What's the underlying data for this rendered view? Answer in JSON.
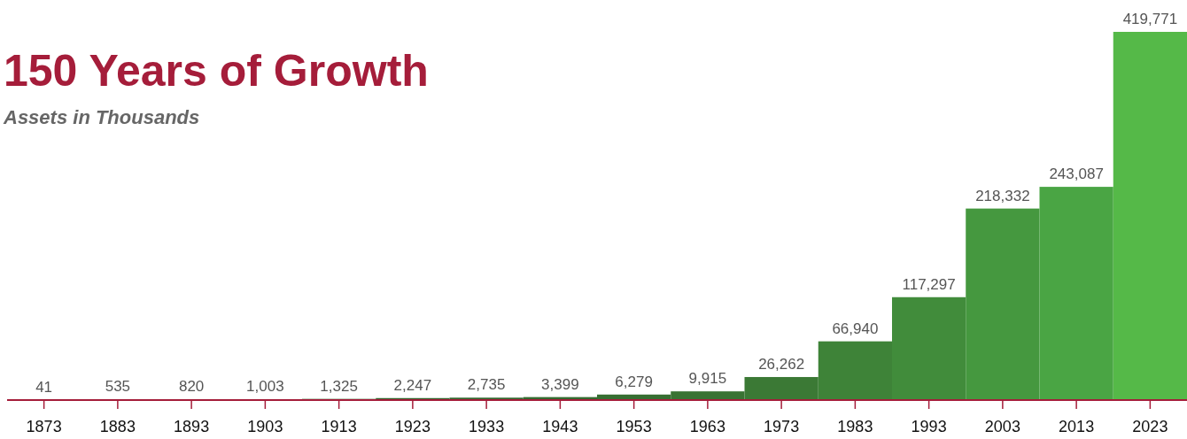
{
  "chart_data": {
    "type": "bar",
    "title": "150 Years of Growth",
    "subtitle": "Assets in Thousands",
    "categories": [
      "1873",
      "1883",
      "1893",
      "1903",
      "1913",
      "1923",
      "1933",
      "1943",
      "1953",
      "1963",
      "1973",
      "1983",
      "1993",
      "2003",
      "2013",
      "2023"
    ],
    "values": [
      41,
      535,
      820,
      1003,
      1325,
      2247,
      2735,
      3399,
      6279,
      9915,
      26262,
      66940,
      117297,
      218332,
      243087,
      419771
    ],
    "colors": [
      "#2e5a2a",
      "#2f5c2b",
      "#305e2c",
      "#31602c",
      "#32622d",
      "#33642e",
      "#34672f",
      "#356a30",
      "#376e31",
      "#397333",
      "#3b7935",
      "#3e8338",
      "#418c3b",
      "#45983f",
      "#4aa544",
      "#55b948"
    ],
    "value_labels": [
      "41",
      "535",
      "820",
      "1,003",
      "1,325",
      "2,247",
      "2,735",
      "3,399",
      "6,279",
      "9,915",
      "26,262",
      "66,940",
      "117,297",
      "218,332",
      "243,087",
      "419,771"
    ]
  }
}
